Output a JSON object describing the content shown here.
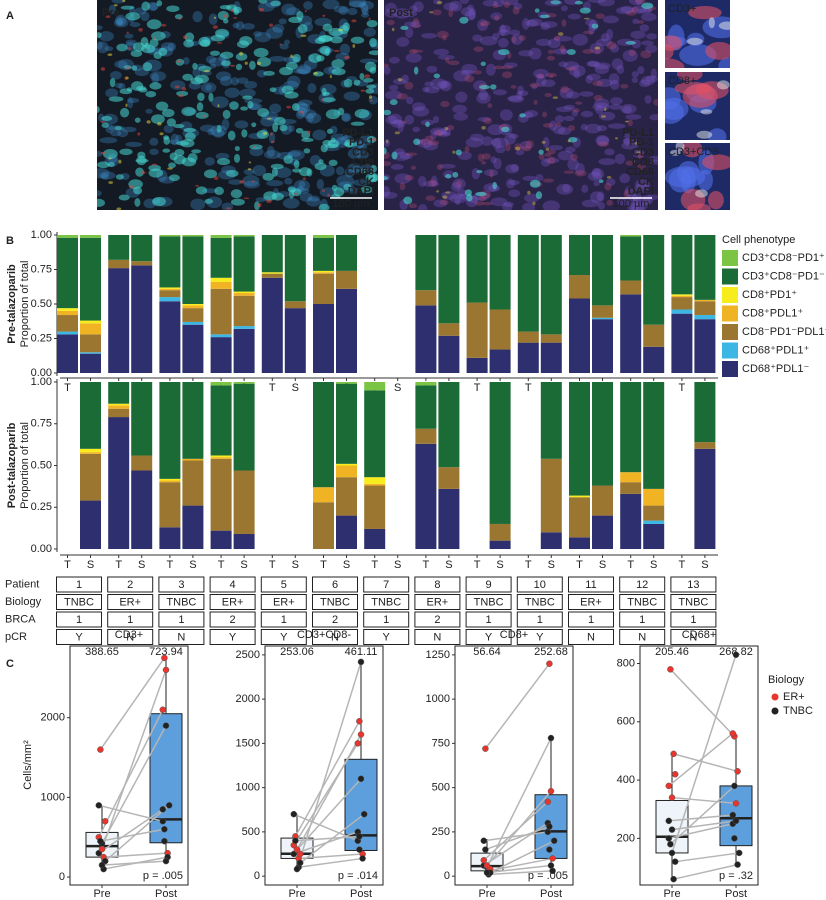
{
  "panel_labels": [
    "A",
    "B",
    "C"
  ],
  "panel_a": {
    "images": [
      "Pre",
      "Post"
    ],
    "insets": [
      "CD3+",
      "CD8+",
      "CD3+CD8-"
    ],
    "markers": [
      {
        "name": "PD-L1",
        "color": "#f0643a"
      },
      {
        "name": "PD-1",
        "color": "#3fbf55"
      },
      {
        "name": "CD3",
        "color": "#e8302e"
      },
      {
        "name": "CD8",
        "color": "#e8e8e8"
      },
      {
        "name": "CD68",
        "color": "#f2dc2a"
      },
      {
        "name": "CK",
        "color": "#38d6d6"
      },
      {
        "name": "DAPI",
        "color": "#4a62e8"
      }
    ],
    "scale_bar": "100 µm"
  },
  "chart_data": [
    {
      "type": "stacked_bar",
      "title": "Pre-talazoparib",
      "ylabel": "Proportion of total",
      "legend_title": "Cell phenotype",
      "categories": [
        "T",
        "S",
        "T",
        "S",
        "T",
        "S",
        "T",
        "S",
        "T",
        "S",
        "T",
        "S",
        "T",
        "S",
        "T",
        "S",
        "T",
        "S",
        "T",
        "S",
        "T",
        "S",
        "T",
        "S",
        "T",
        "S"
      ],
      "ylim": [
        0,
        1
      ],
      "yticks": [
        {
          "value": 0,
          "label": "0.00"
        },
        {
          "value": 0.25,
          "label": "0.25"
        },
        {
          "value": 0.5,
          "label": "0.50"
        },
        {
          "value": 0.75,
          "label": "0.75"
        },
        {
          "value": 1,
          "label": "1.00"
        }
      ],
      "series": [
        {
          "name": "CD68⁺PDL1⁻",
          "color": "#2e2f6e",
          "values": [
            0.28,
            0.14,
            0.76,
            0.78,
            0.52,
            0.35,
            0.26,
            0.32,
            0.69,
            0.47,
            0.5,
            0.61,
            null,
            null,
            0.49,
            0.27,
            0.11,
            0.17,
            0.22,
            0.22,
            0.54,
            0.39,
            0.57,
            0.19,
            0.43,
            0.39
          ]
        },
        {
          "name": "CD68⁺PDL1⁺",
          "color": "#3cb6e3",
          "values": [
            0.02,
            0.01,
            0,
            0,
            0.03,
            0.02,
            0.02,
            0.02,
            0,
            0,
            0,
            0,
            null,
            null,
            0,
            0,
            0,
            0,
            0,
            0,
            0,
            0.01,
            0,
            0,
            0.03,
            0.03
          ]
        },
        {
          "name": "CD8⁻PD1⁻PDL1⁻",
          "color": "#9a7630",
          "values": [
            0.12,
            0.13,
            0.06,
            0.03,
            0.05,
            0.1,
            0.33,
            0.22,
            0.03,
            0.05,
            0.22,
            0.13,
            null,
            null,
            0.11,
            0.09,
            0.4,
            0.29,
            0.08,
            0.06,
            0.17,
            0.09,
            0.1,
            0.16,
            0.09,
            0.1
          ]
        },
        {
          "name": "CD8⁺PDL1⁺",
          "color": "#f0b323",
          "values": [
            0.03,
            0.08,
            0,
            0,
            0.01,
            0.02,
            0.05,
            0.02,
            0,
            0,
            0.01,
            0,
            null,
            null,
            0,
            0,
            0,
            0,
            0,
            0,
            0,
            0,
            0,
            0,
            0.01,
            0.01
          ]
        },
        {
          "name": "CD8⁺PD1⁺",
          "color": "#f7ec1c",
          "values": [
            0.02,
            0.02,
            0,
            0,
            0.01,
            0.01,
            0.03,
            0.01,
            0.01,
            0,
            0.01,
            0,
            null,
            null,
            0,
            0,
            0,
            0,
            0,
            0,
            0,
            0,
            0,
            0,
            0.01,
            0
          ]
        },
        {
          "name": "CD3⁺CD8⁻PD1⁻",
          "color": "#1b6b36",
          "values": [
            0.51,
            0.6,
            0.18,
            0.19,
            0.37,
            0.49,
            0.29,
            0.4,
            0.27,
            0.48,
            0.24,
            0.26,
            null,
            null,
            0.4,
            0.64,
            0.49,
            0.54,
            0.7,
            0.72,
            0.29,
            0.51,
            0.32,
            0.65,
            0.43,
            0.47
          ]
        },
        {
          "name": "CD3⁺CD8⁻PD1⁺",
          "color": "#7cc443",
          "values": [
            0.02,
            0.02,
            0,
            0,
            0.01,
            0.01,
            0.02,
            0.01,
            0,
            0,
            0.02,
            0,
            null,
            null,
            0,
            0,
            0,
            0,
            0,
            0,
            0,
            0,
            0.01,
            0,
            0,
            0
          ]
        }
      ]
    },
    {
      "type": "stacked_bar",
      "title": "Post-talazoparib",
      "ylabel": "Proportion of total",
      "categories": [
        "T",
        "S",
        "T",
        "S",
        "T",
        "S",
        "T",
        "S",
        "T",
        "S",
        "T",
        "S",
        "T",
        "S",
        "T",
        "S",
        "T",
        "S",
        "T",
        "S",
        "T",
        "S",
        "T",
        "S",
        "T",
        "S"
      ],
      "ylim": [
        0,
        1
      ],
      "yticks": [
        {
          "value": 0,
          "label": "0.00"
        },
        {
          "value": 0.25,
          "label": "0.25"
        },
        {
          "value": 0.5,
          "label": "0.50"
        },
        {
          "value": 0.75,
          "label": "0.75"
        },
        {
          "value": 1,
          "label": "1.00"
        }
      ],
      "series": [
        {
          "values": [
            null,
            0.29,
            0.79,
            0.47,
            0.13,
            0.26,
            0.11,
            0.09,
            null,
            null,
            0,
            0.2,
            0.12,
            null,
            0.63,
            0.36,
            null,
            0.05,
            null,
            0.1,
            0.07,
            0.2,
            0.33,
            0.15,
            null,
            0.6
          ]
        },
        {
          "values": [
            null,
            0,
            0,
            0,
            0,
            0,
            0,
            0,
            null,
            null,
            0,
            0,
            0,
            null,
            0,
            0,
            null,
            0,
            null,
            0,
            0,
            0,
            0,
            0.02,
            null,
            0
          ]
        },
        {
          "values": [
            null,
            0.28,
            0.05,
            0.09,
            0.27,
            0.27,
            0.43,
            0.38,
            null,
            null,
            0.28,
            0.23,
            0.26,
            null,
            0.09,
            0.13,
            null,
            0.1,
            null,
            0.44,
            0.24,
            0.18,
            0.07,
            0.09,
            null,
            0.04
          ]
        },
        {
          "values": [
            null,
            0.01,
            0.02,
            0,
            0.01,
            0.01,
            0.01,
            0,
            null,
            null,
            0.09,
            0.07,
            0.01,
            null,
            0,
            0,
            null,
            0,
            null,
            0,
            0,
            0,
            0.06,
            0.1,
            null,
            0
          ]
        },
        {
          "values": [
            null,
            0.02,
            0.01,
            0,
            0.01,
            0,
            0.01,
            0,
            null,
            null,
            0,
            0.01,
            0.04,
            null,
            0,
            0,
            null,
            0,
            null,
            0,
            0.01,
            0,
            0,
            0,
            null,
            0
          ]
        },
        {
          "values": [
            null,
            0.4,
            0.13,
            0.44,
            0.58,
            0.46,
            0.42,
            0.52,
            null,
            null,
            0.63,
            0.48,
            0.52,
            null,
            0.26,
            0.51,
            null,
            0.85,
            null,
            0.46,
            0.68,
            0.62,
            0.54,
            0.64,
            null,
            0.36
          ]
        },
        {
          "values": [
            null,
            0,
            0,
            0,
            0,
            0,
            0.02,
            0.01,
            null,
            null,
            0,
            0.01,
            0.05,
            null,
            0.02,
            0,
            null,
            0,
            null,
            0,
            0,
            0,
            0,
            0,
            null,
            0
          ]
        }
      ]
    },
    {
      "type": "box",
      "title": "CD3+",
      "ylabel": "Cells/mm²",
      "categories": [
        "Pre",
        "Post"
      ],
      "ylim": [
        -100,
        2900
      ],
      "yticks": [
        0,
        1000,
        2000
      ],
      "medians": [
        388.65,
        723.94
      ],
      "boxes": [
        {
          "low": 80,
          "q1": 250,
          "q3": 560,
          "high": 900
        },
        {
          "low": 200,
          "q1": 430,
          "q3": 2050,
          "high": 2750
        }
      ],
      "points": [
        [
          300,
          1600,
          420,
          250,
          700,
          900,
          null,
          350,
          100,
          200,
          500,
          450,
          150
        ],
        [
          850,
          2750,
          1900,
          300,
          null,
          700,
          450,
          2600,
          250,
          900,
          2100,
          600,
          200
        ]
      ],
      "annotation": "p = .005"
    },
    {
      "type": "box",
      "title": "CD3+CD8-",
      "categories": [
        "Pre",
        "Post"
      ],
      "ylim": [
        -100,
        2600
      ],
      "yticks": [
        0,
        500,
        1000,
        1500,
        2000,
        2500
      ],
      "medians": [
        253.06,
        461.11
      ],
      "boxes": [
        {
          "low": 60,
          "q1": 200,
          "q3": 430,
          "high": 700
        },
        {
          "low": 200,
          "q1": 290,
          "q3": 1320,
          "high": 2420
        }
      ],
      "points": [
        [
          250,
          450,
          300,
          200,
          250,
          700,
          null,
          300,
          100,
          150,
          350,
          400,
          80
        ],
        [
          500,
          1750,
          1100,
          250,
          null,
          400,
          300,
          1600,
          200,
          700,
          1500,
          450,
          2420
        ]
      ],
      "annotation": "p = .014"
    },
    {
      "type": "box",
      "title": "CD8+",
      "categories": [
        "Pre",
        "Post"
      ],
      "ylim": [
        -50,
        1300
      ],
      "yticks": [
        0,
        250,
        500,
        750,
        1000,
        1250
      ],
      "medians": [
        56.64,
        252.68
      ],
      "boxes": [
        {
          "low": 10,
          "q1": 30,
          "q3": 130,
          "high": 210
        },
        {
          "low": 20,
          "q1": 100,
          "q3": 460,
          "high": 780
        }
      ],
      "points": [
        [
          60,
          720,
          50,
          30,
          40,
          200,
          null,
          60,
          10,
          20,
          90,
          150,
          20
        ],
        [
          300,
          1200,
          780,
          100,
          null,
          250,
          150,
          480,
          30,
          200,
          420,
          280,
          60
        ]
      ],
      "annotation": "p = .005"
    },
    {
      "type": "box",
      "title": "CD68+",
      "categories": [
        "Pre",
        "Post"
      ],
      "ylim": [
        40,
        860
      ],
      "yticks": [
        200,
        400,
        600,
        800
      ],
      "medians": [
        205.46,
        268.82
      ],
      "boxes": [
        {
          "low": 60,
          "q1": 150,
          "q3": 330,
          "high": 490
        },
        {
          "low": 110,
          "q1": 175,
          "q3": 380,
          "high": 560
        }
      ],
      "points": [
        [
          200,
          780,
          150,
          490,
          420,
          260,
          null,
          340,
          60,
          120,
          380,
          180,
          230
        ],
        [
          250,
          550,
          830,
          430,
          null,
          280,
          200,
          320,
          110,
          150,
          560,
          380,
          260
        ]
      ],
      "annotation": "p = .32"
    }
  ],
  "box_colors": [
    "#eef4fa",
    "#5c9fdc"
  ],
  "patient_table": {
    "row_labels": [
      "Patient",
      "Biology",
      "BRCA",
      "pCR"
    ],
    "rows": [
      [
        1,
        2,
        3,
        4,
        5,
        6,
        7,
        8,
        9,
        10,
        11,
        12,
        13
      ],
      [
        "TNBC",
        "ER+",
        "TNBC",
        "ER+",
        "ER+",
        "TNBC",
        "TNBC",
        "ER+",
        "TNBC",
        "TNBC",
        "ER+",
        "TNBC",
        "TNBC"
      ],
      [
        1,
        1,
        1,
        2,
        1,
        2,
        1,
        2,
        1,
        1,
        1,
        1,
        1
      ],
      [
        "Y",
        "N",
        "N",
        "Y",
        "Y",
        "N",
        "Y",
        "N",
        "Y",
        "Y",
        "N",
        "N",
        "N"
      ]
    ]
  },
  "biology_legend": {
    "title": "Biology",
    "groups": [
      {
        "name": "ER+",
        "color": "#e8352e"
      },
      {
        "name": "TNBC",
        "color": "#222222"
      }
    ]
  }
}
